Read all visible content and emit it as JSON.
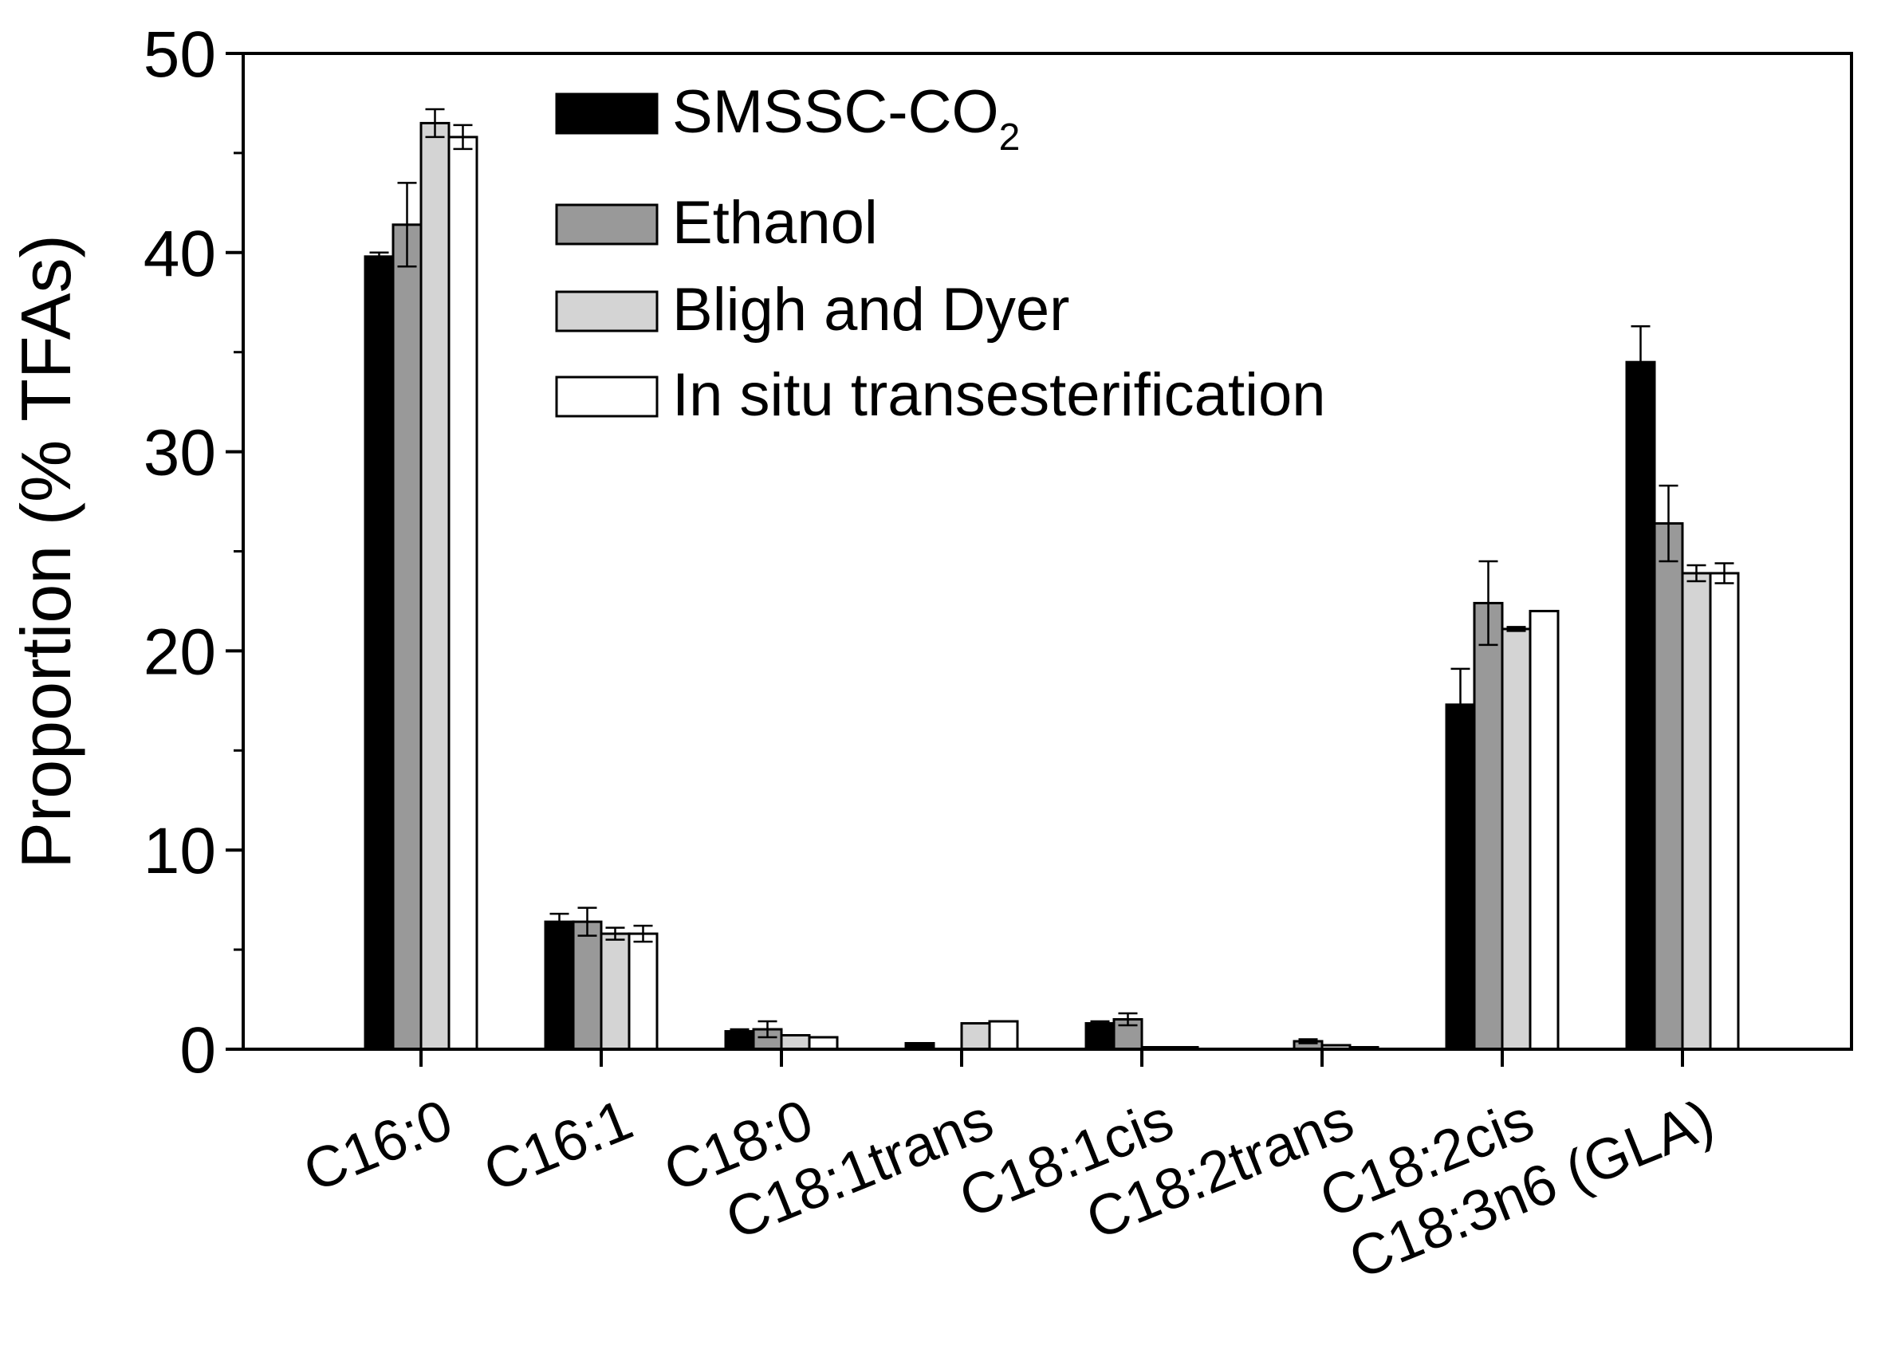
{
  "chart_data": {
    "type": "bar",
    "title": "",
    "xlabel": "",
    "ylabel": "Proportion (% TFAs)",
    "ylim": [
      0,
      50
    ],
    "yticks": [
      0,
      10,
      20,
      30,
      40,
      50
    ],
    "grid": false,
    "legend_position": "top-center",
    "categories": [
      "C16:0",
      "C16:1",
      "C18:0",
      "C18:1trans",
      "C18:1cis",
      "C18:2trans",
      "C18:2cis",
      "C18:3n6 (GLA)"
    ],
    "series": [
      {
        "name": "SMSSC-CO",
        "name_subscript": "2",
        "color": "#000000",
        "values": [
          39.8,
          6.4,
          0.9,
          0.3,
          1.3,
          0.0,
          17.3,
          34.5
        ],
        "errors": [
          0.2,
          0.4,
          0.1,
          0.0,
          0.1,
          0.0,
          1.8,
          1.8
        ]
      },
      {
        "name": "Ethanol",
        "color": "#999999",
        "values": [
          41.4,
          6.4,
          1.0,
          0.0,
          1.5,
          0.4,
          22.4,
          26.4
        ],
        "errors": [
          2.1,
          0.7,
          0.4,
          0.0,
          0.3,
          0.1,
          2.1,
          1.9
        ]
      },
      {
        "name": "Bligh and Dyer",
        "color": "#d4d4d4",
        "values": [
          46.5,
          5.8,
          0.7,
          1.3,
          0.1,
          0.2,
          21.1,
          23.9
        ],
        "errors": [
          0.7,
          0.3,
          0.0,
          0.0,
          0.0,
          0.0,
          0.1,
          0.4
        ]
      },
      {
        "name": "In situ transesterification",
        "color": "#ffffff",
        "values": [
          45.8,
          5.8,
          0.6,
          1.4,
          0.1,
          0.1,
          22.0,
          23.9
        ],
        "errors": [
          0.6,
          0.4,
          0.0,
          0.0,
          0.0,
          0.0,
          0.0,
          0.5
        ]
      }
    ]
  }
}
